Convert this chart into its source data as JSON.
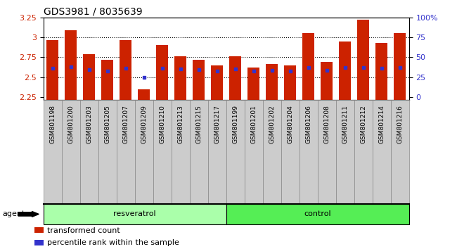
{
  "title": "GDS3981 / 8035639",
  "samples": [
    "GSM801198",
    "GSM801200",
    "GSM801203",
    "GSM801205",
    "GSM801207",
    "GSM801209",
    "GSM801210",
    "GSM801213",
    "GSM801215",
    "GSM801217",
    "GSM801199",
    "GSM801201",
    "GSM801202",
    "GSM801204",
    "GSM801206",
    "GSM801208",
    "GSM801211",
    "GSM801212",
    "GSM801214",
    "GSM801216"
  ],
  "bar_values": [
    2.97,
    3.09,
    2.79,
    2.72,
    2.97,
    2.35,
    2.9,
    2.76,
    2.72,
    2.65,
    2.76,
    2.62,
    2.67,
    2.65,
    3.05,
    2.69,
    2.95,
    3.22,
    2.93,
    3.05
  ],
  "blue_marker_values": [
    2.615,
    2.635,
    2.595,
    2.58,
    2.615,
    2.495,
    2.615,
    2.605,
    2.595,
    2.575,
    2.605,
    2.58,
    2.585,
    2.575,
    2.625,
    2.59,
    2.625,
    2.625,
    2.615,
    2.625
  ],
  "groups": [
    {
      "label": "resveratrol",
      "start": 0,
      "end": 9,
      "color": "#aaffaa"
    },
    {
      "label": "control",
      "start": 10,
      "end": 19,
      "color": "#55ee55"
    }
  ],
  "bar_color": "#cc2200",
  "blue_color": "#3333cc",
  "ymin": 2.22,
  "ymax": 3.25,
  "yticks": [
    2.25,
    2.5,
    2.75,
    3.0,
    3.25
  ],
  "ytick_labels": [
    "2.25",
    "2.5",
    "2.75",
    "3",
    "3.25"
  ],
  "right_tick_positions": [
    2.25,
    2.5,
    2.75,
    3.0,
    3.25
  ],
  "right_tick_labels": [
    "0",
    "25",
    "50",
    "75",
    "100%"
  ],
  "grid_values": [
    2.5,
    2.75,
    3.0
  ],
  "legend_items": [
    {
      "label": "transformed count",
      "color": "#cc2200"
    },
    {
      "label": "percentile rank within the sample",
      "color": "#3333cc"
    }
  ],
  "agent_label": "agent",
  "tick_bg_color": "#cccccc",
  "tick_border_color": "#888888",
  "bar_width": 0.65,
  "figsize": [
    6.5,
    3.54
  ],
  "dpi": 100
}
